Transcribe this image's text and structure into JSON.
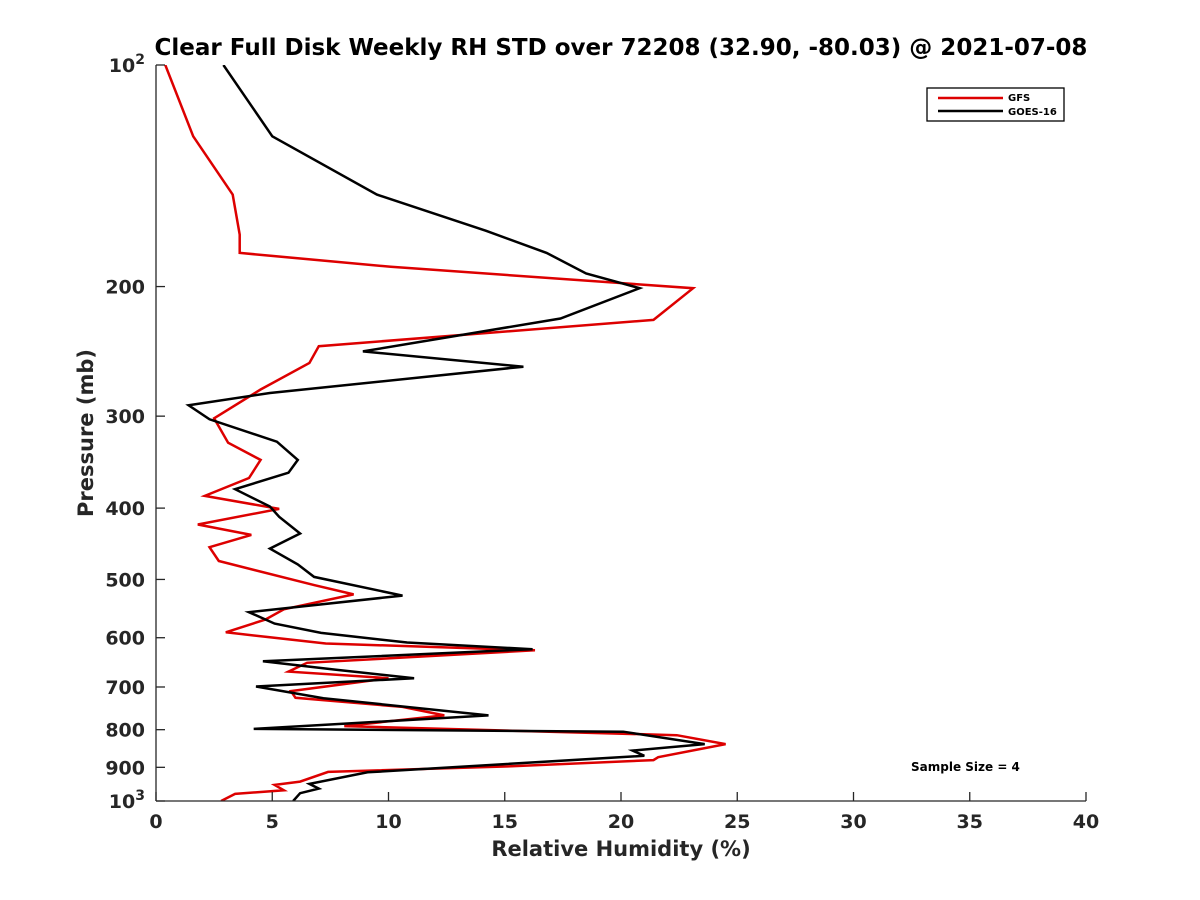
{
  "chart_data": {
    "type": "line",
    "title": "Clear Full Disk Weekly RH STD over 72208 (32.90, -80.03) @ 2021-07-08",
    "xlabel": "Relative Humidity (%)",
    "ylabel": "Pressure (mb)",
    "xlim": [
      0,
      40
    ],
    "ylim": [
      100,
      1000
    ],
    "y_scale": "log",
    "y_reversed": true,
    "grid": false,
    "legend_position": "top-right",
    "xticks": [
      0,
      5,
      10,
      15,
      20,
      25,
      30,
      35,
      40
    ],
    "yticks": [
      {
        "value": 100,
        "label": "10",
        "sup": "2"
      },
      {
        "value": 200,
        "label": "200"
      },
      {
        "value": 300,
        "label": "300"
      },
      {
        "value": 400,
        "label": "400"
      },
      {
        "value": 500,
        "label": "500"
      },
      {
        "value": 600,
        "label": "600"
      },
      {
        "value": 700,
        "label": "700"
      },
      {
        "value": 800,
        "label": "800"
      },
      {
        "value": 900,
        "label": "900"
      },
      {
        "value": 1000,
        "label": "10",
        "sup": "3"
      }
    ],
    "annotation": "Sample Size = 4",
    "series": [
      {
        "name": "GFS",
        "color": "#dd0000",
        "points": [
          [
            0.4,
            100
          ],
          [
            1.6,
            125
          ],
          [
            3.3,
            150
          ],
          [
            3.6,
            170
          ],
          [
            3.6,
            180
          ],
          [
            10.1,
            188
          ],
          [
            23.1,
            201
          ],
          [
            21.4,
            222
          ],
          [
            7.0,
            241
          ],
          [
            6.6,
            254
          ],
          [
            4.5,
            276
          ],
          [
            2.5,
            302
          ],
          [
            3.1,
            326
          ],
          [
            4.5,
            344
          ],
          [
            4.0,
            364
          ],
          [
            2.1,
            385
          ],
          [
            5.3,
            401
          ],
          [
            1.8,
            421
          ],
          [
            4.1,
            435
          ],
          [
            2.3,
            452
          ],
          [
            2.7,
            472
          ],
          [
            6.8,
            509
          ],
          [
            8.5,
            524
          ],
          [
            5.5,
            549
          ],
          [
            4.7,
            567
          ],
          [
            3.0,
            590
          ],
          [
            7.3,
            611
          ],
          [
            16.3,
            624
          ],
          [
            6.5,
            649
          ],
          [
            5.7,
            667
          ],
          [
            10.0,
            681
          ],
          [
            5.8,
            709
          ],
          [
            6.0,
            724
          ],
          [
            10.6,
            745
          ],
          [
            12.4,
            765
          ],
          [
            8.1,
            791
          ],
          [
            22.4,
            814
          ],
          [
            24.5,
            837
          ],
          [
            21.6,
            872
          ],
          [
            21.4,
            880
          ],
          [
            15.3,
            897
          ],
          [
            7.4,
            913
          ],
          [
            6.2,
            941
          ],
          [
            5.1,
            951
          ],
          [
            5.5,
            967
          ],
          [
            3.4,
            978
          ],
          [
            2.8,
            1000
          ]
        ]
      },
      {
        "name": "GOES-16",
        "color": "#000000",
        "points": [
          [
            2.9,
            100
          ],
          [
            5.0,
            125
          ],
          [
            9.5,
            150
          ],
          [
            14.2,
            168
          ],
          [
            16.8,
            180
          ],
          [
            18.5,
            192
          ],
          [
            20.8,
            201
          ],
          [
            17.4,
            221
          ],
          [
            8.9,
            245
          ],
          [
            15.8,
            257
          ],
          [
            4.9,
            279
          ],
          [
            1.4,
            290
          ],
          [
            2.3,
            303
          ],
          [
            5.2,
            325
          ],
          [
            6.1,
            344
          ],
          [
            5.7,
            358
          ],
          [
            3.4,
            377
          ],
          [
            4.9,
            398
          ],
          [
            5.3,
            411
          ],
          [
            6.2,
            433
          ],
          [
            4.9,
            454
          ],
          [
            6.1,
            477
          ],
          [
            6.8,
            496
          ],
          [
            10.6,
            526
          ],
          [
            4.0,
            554
          ],
          [
            5.1,
            574
          ],
          [
            7.1,
            591
          ],
          [
            10.8,
            609
          ],
          [
            16.2,
            622
          ],
          [
            4.6,
            646
          ],
          [
            7.7,
            663
          ],
          [
            11.1,
            681
          ],
          [
            4.3,
            699
          ],
          [
            7.2,
            725
          ],
          [
            14.3,
            765
          ],
          [
            4.2,
            798
          ],
          [
            20.1,
            805
          ],
          [
            23.6,
            837
          ],
          [
            20.5,
            854
          ],
          [
            21.0,
            868
          ],
          [
            9.1,
            914
          ],
          [
            6.6,
            948
          ],
          [
            7.0,
            962
          ],
          [
            6.2,
            976
          ],
          [
            5.9,
            1000
          ]
        ]
      }
    ]
  }
}
